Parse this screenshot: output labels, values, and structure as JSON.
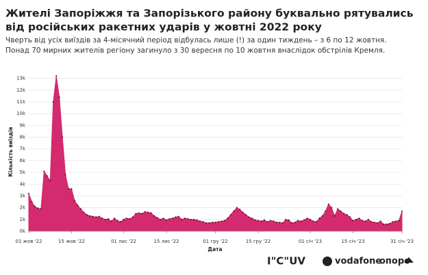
{
  "chart_data": {
    "type": "area",
    "title": [
      "Жителі Запоріжжя та Запорізького району буквально рятувались",
      "від російських ракетних ударів у жовтні 2022 року"
    ],
    "subtitle": [
      "Чверть від усіх виїздів за 4-місячний період відбулась лише (!) за один тиждень – з 6 по 12 жовтня.",
      "Понад 70 мирних жителів регіону загинуло з 30 вересня по 10 жовтня внаслідок обстрілів Кремля."
    ],
    "x_label": "Дата",
    "y_label": "Кількість виїздів",
    "color": "#d42a6f",
    "marker_color": "#3a1020",
    "grid": true,
    "x": [
      "2022-10-01",
      "2022-10-02",
      "2022-10-03",
      "2022-10-04",
      "2022-10-05",
      "2022-10-06",
      "2022-10-07",
      "2022-10-08",
      "2022-10-09",
      "2022-10-10",
      "2022-10-11",
      "2022-10-12",
      "2022-10-13",
      "2022-10-14",
      "2022-10-15",
      "2022-10-16",
      "2022-10-17",
      "2022-10-18",
      "2022-10-19",
      "2022-10-20",
      "2022-10-21",
      "2022-10-22",
      "2022-10-23",
      "2022-10-24",
      "2022-10-25",
      "2022-10-26",
      "2022-10-27",
      "2022-10-28",
      "2022-10-29",
      "2022-10-30",
      "2022-10-31",
      "2022-11-01",
      "2022-11-02",
      "2022-11-03",
      "2022-11-04",
      "2022-11-05",
      "2022-11-06",
      "2022-11-07",
      "2022-11-08",
      "2022-11-09",
      "2022-11-10",
      "2022-11-11",
      "2022-11-12",
      "2022-11-13",
      "2022-11-14",
      "2022-11-15",
      "2022-11-16",
      "2022-11-17",
      "2022-11-18",
      "2022-11-19",
      "2022-11-20",
      "2022-11-21",
      "2022-11-22",
      "2022-11-23",
      "2022-11-24",
      "2022-11-25",
      "2022-11-26",
      "2022-11-27",
      "2022-11-28",
      "2022-11-29",
      "2022-11-30",
      "2022-12-01",
      "2022-12-02",
      "2022-12-03",
      "2022-12-04",
      "2022-12-05",
      "2022-12-06",
      "2022-12-07",
      "2022-12-08",
      "2022-12-09",
      "2022-12-10",
      "2022-12-11",
      "2022-12-12",
      "2022-12-13",
      "2022-12-14",
      "2022-12-15",
      "2022-12-16",
      "2022-12-17",
      "2022-12-18",
      "2022-12-19",
      "2022-12-20",
      "2022-12-21",
      "2022-12-22",
      "2022-12-23",
      "2022-12-24",
      "2022-12-25",
      "2022-12-26",
      "2022-12-27",
      "2022-12-28",
      "2022-12-29",
      "2022-12-30",
      "2022-12-31",
      "2023-01-01",
      "2023-01-02",
      "2023-01-03",
      "2023-01-04",
      "2023-01-05",
      "2023-01-06",
      "2023-01-07",
      "2023-01-08",
      "2023-01-09",
      "2023-01-10",
      "2023-01-11",
      "2023-01-12",
      "2023-01-13",
      "2023-01-14",
      "2023-01-15",
      "2023-01-16",
      "2023-01-17",
      "2023-01-18",
      "2023-01-19",
      "2023-01-20",
      "2023-01-21",
      "2023-01-22",
      "2023-01-23",
      "2023-01-24",
      "2023-01-25",
      "2023-01-26",
      "2023-01-27",
      "2023-01-28",
      "2023-01-29",
      "2023-01-30",
      "2023-01-31"
    ],
    "values": [
      3200,
      2500,
      2100,
      1950,
      1900,
      5100,
      4700,
      4300,
      11000,
      13200,
      11400,
      8000,
      4800,
      3600,
      3600,
      2600,
      2200,
      1900,
      1600,
      1400,
      1300,
      1250,
      1200,
      1250,
      1100,
      1000,
      1050,
      850,
      1100,
      900,
      800,
      1000,
      1100,
      1050,
      1200,
      1500,
      1550,
      1500,
      1650,
      1600,
      1550,
      1300,
      1150,
      1000,
      1100,
      950,
      1050,
      1100,
      1200,
      1250,
      1000,
      1100,
      1050,
      1000,
      1000,
      950,
      850,
      800,
      700,
      700,
      750,
      750,
      800,
      850,
      900,
      1100,
      1400,
      1700,
      2000,
      1850,
      1600,
      1400,
      1200,
      1100,
      950,
      900,
      850,
      950,
      800,
      900,
      850,
      750,
      750,
      700,
      1000,
      950,
      700,
      750,
      900,
      850,
      950,
      1100,
      1000,
      850,
      800,
      1100,
      1300,
      1700,
      2300,
      2000,
      1300,
      1900,
      1700,
      1500,
      1400,
      1200,
      900,
      1000,
      1100,
      900,
      850,
      1000,
      800,
      750,
      700,
      850,
      600,
      600,
      650,
      800,
      850,
      900,
      1700
    ],
    "xlim": [
      "2022-10-01",
      "2023-01-31"
    ],
    "xticks": [
      {
        "value": "2022-10-01",
        "label": "01 жов '22"
      },
      {
        "value": "2022-10-15",
        "label": "15 жов '22"
      },
      {
        "value": "2022-11-01",
        "label": "01 лис '22"
      },
      {
        "value": "2022-11-15",
        "label": "15 лис '22"
      },
      {
        "value": "2022-12-01",
        "label": "01 гру '22"
      },
      {
        "value": "2022-12-15",
        "label": "15 гру '22"
      },
      {
        "value": "2023-01-01",
        "label": "01 січ '23"
      },
      {
        "value": "2023-01-15",
        "label": "15 січ '23"
      },
      {
        "value": "2023-01-31",
        "label": "31 січ '23"
      }
    ],
    "ylim": [
      0,
      13500
    ],
    "yticks": [
      {
        "value": 0,
        "label": "0k"
      },
      {
        "value": 1000,
        "label": "1k"
      },
      {
        "value": 2000,
        "label": "2k"
      },
      {
        "value": 3000,
        "label": "3k"
      },
      {
        "value": 4000,
        "label": "4k"
      },
      {
        "value": 5000,
        "label": "5k"
      },
      {
        "value": 6000,
        "label": "6k"
      },
      {
        "value": 7000,
        "label": "7k"
      },
      {
        "value": 8000,
        "label": "8k"
      },
      {
        "value": 9000,
        "label": "9k"
      },
      {
        "value": 10000,
        "label": "10k"
      },
      {
        "value": 11000,
        "label": "11k"
      },
      {
        "value": 12000,
        "label": "12k"
      },
      {
        "value": 13000,
        "label": "13k"
      }
    ]
  },
  "footer": {
    "logos": [
      "I\"C\"UV",
      "vodafone",
      "опорс"
    ]
  }
}
